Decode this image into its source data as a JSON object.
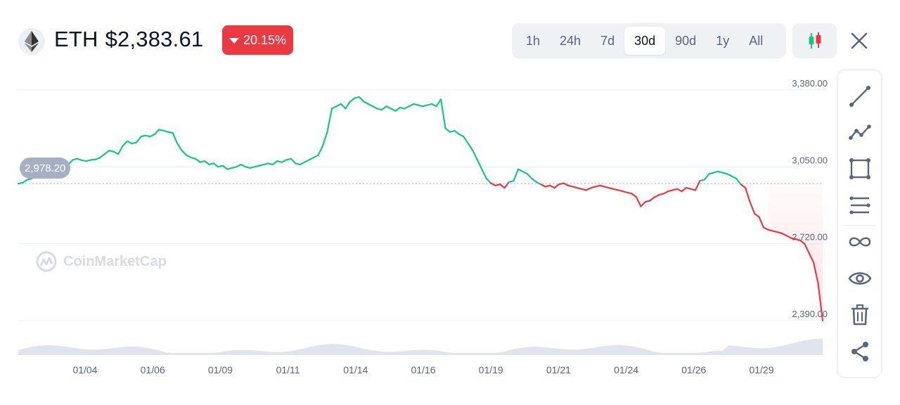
{
  "header": {
    "symbol": "ETH",
    "price": "$2,383.61",
    "change": "20.15%",
    "change_direction": "down",
    "change_color": "#ea3943"
  },
  "ranges": [
    {
      "label": "1h",
      "active": false
    },
    {
      "label": "24h",
      "active": false
    },
    {
      "label": "7d",
      "active": false
    },
    {
      "label": "30d",
      "active": true
    },
    {
      "label": "90d",
      "active": false
    },
    {
      "label": "1y",
      "active": false
    },
    {
      "label": "All",
      "active": false
    }
  ],
  "icons": {
    "logo": "ethereum-icon",
    "chart_type": "candlestick-icon",
    "close": "close-icon"
  },
  "toolbar": [
    "line-icon",
    "polyline-icon",
    "rectangle-icon",
    "horizontal-lines-icon",
    "infinity-icon",
    "eye-icon",
    "trash-icon",
    "share-icon"
  ],
  "watermark": "CoinMarketCap",
  "chart_data": {
    "type": "line",
    "title": "",
    "xlabel": "",
    "ylabel": "",
    "x_tick_labels": [
      "01/04",
      "01/06",
      "01/09",
      "01/11",
      "01/14",
      "01/16",
      "01/19",
      "01/21",
      "01/24",
      "01/26",
      "01/29"
    ],
    "y_tick_labels": [
      "3,380.00",
      "3,050.00",
      "2,720.00",
      "2,390.00"
    ],
    "y_ticks": [
      3380,
      3050,
      2720,
      2390
    ],
    "ylim": [
      2390,
      3380
    ],
    "baseline": 2978.2,
    "baseline_label": "2,978.20",
    "colors": {
      "above": "#16c784",
      "below": "#ea3943"
    },
    "grid": true,
    "series": [
      {
        "values": [
          2978,
          2982,
          2995,
          3000,
          3040,
          3035,
          3060,
          3058,
          3052,
          3045,
          3050,
          3060,
          3080,
          3085,
          3078,
          3075,
          3080,
          3082,
          3090,
          3105,
          3120,
          3115,
          3105,
          3140,
          3160,
          3150,
          3155,
          3180,
          3185,
          3180,
          3190,
          3210,
          3205,
          3200,
          3195,
          3150,
          3120,
          3100,
          3090,
          3085,
          3070,
          3075,
          3060,
          3065,
          3050,
          3055,
          3040,
          3045,
          3050,
          3060,
          3050,
          3045,
          3050,
          3055,
          3060,
          3065,
          3060,
          3075,
          3070,
          3080,
          3085,
          3065,
          3060,
          3070,
          3080,
          3090,
          3100,
          3140,
          3200,
          3300,
          3310,
          3320,
          3300,
          3330,
          3345,
          3350,
          3330,
          3320,
          3310,
          3300,
          3295,
          3310,
          3300,
          3290,
          3305,
          3300,
          3310,
          3320,
          3315,
          3310,
          3315,
          3320,
          3310,
          3340,
          3215,
          3200,
          3205,
          3190,
          3180,
          3150,
          3120,
          3080,
          3040,
          3000,
          2980,
          2970,
          2975,
          2960,
          2985,
          2990,
          3040,
          3030,
          3020,
          3000,
          2985,
          2975,
          2965,
          2970,
          2960,
          2975,
          2980,
          2970,
          2965,
          2960,
          2955,
          2950,
          2960,
          2965,
          2970,
          2965,
          2960,
          2955,
          2950,
          2945,
          2940,
          2935,
          2920,
          2880,
          2900,
          2905,
          2920,
          2930,
          2935,
          2945,
          2950,
          2955,
          2945,
          2960,
          2955,
          2950,
          2990,
          2995,
          3020,
          3025,
          3030,
          3025,
          3020,
          3010,
          3000,
          2975,
          2960,
          2900,
          2850,
          2835,
          2790,
          2780,
          2775,
          2770,
          2765,
          2755,
          2745,
          2740,
          2735,
          2720,
          2680,
          2640,
          2550,
          2390
        ]
      }
    ]
  }
}
